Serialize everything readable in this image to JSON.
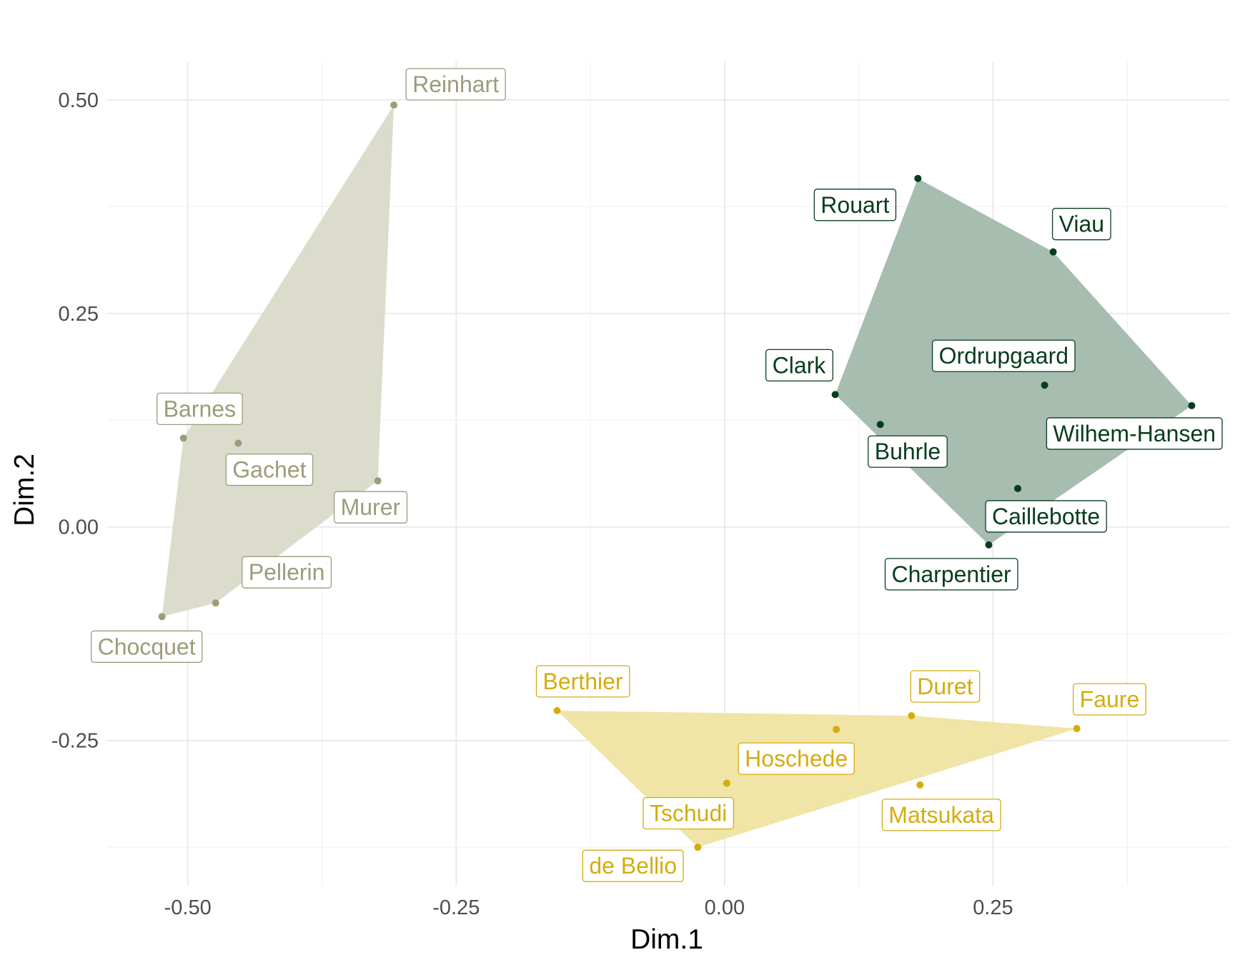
{
  "chart_data": {
    "type": "scatter",
    "title": "",
    "xlabel": "Dim.1",
    "ylabel": "Dim.2",
    "xlim": [
      -0.575,
      0.47
    ],
    "ylim": [
      -0.42,
      0.545
    ],
    "xticks": [
      -0.5,
      -0.25,
      0.0,
      0.25
    ],
    "xtick_labels": [
      "-0.50",
      "-0.25",
      "0.00",
      "0.25"
    ],
    "yticks": [
      -0.25,
      0.0,
      0.25,
      0.5
    ],
    "ytick_labels": [
      "-0.25",
      "0.00",
      "0.25",
      "0.50"
    ],
    "grid": true,
    "legend": "none",
    "series": [
      {
        "color": "#9c9c7a",
        "fill": "#dcdccc",
        "points": [
          {
            "label": "Reinhart",
            "x": -0.308,
            "y": 0.494
          },
          {
            "label": "Barnes",
            "x": -0.504,
            "y": 0.104
          },
          {
            "label": "Gachet",
            "x": -0.453,
            "y": 0.098
          },
          {
            "label": "Murer",
            "x": -0.323,
            "y": 0.054
          },
          {
            "label": "Pellerin",
            "x": -0.474,
            "y": -0.089
          },
          {
            "label": "Chocquet",
            "x": -0.524,
            "y": -0.105
          }
        ],
        "hull": [
          "Reinhart",
          "Murer",
          "Pellerin",
          "Chocquet",
          "Barnes"
        ]
      },
      {
        "color": "#073d1c",
        "fill": "#a7bdb0",
        "points": [
          {
            "label": "Rouart",
            "x": 0.18,
            "y": 0.408
          },
          {
            "label": "Viau",
            "x": 0.306,
            "y": 0.322
          },
          {
            "label": "Ordrupgaard",
            "x": 0.298,
            "y": 0.166
          },
          {
            "label": "Clark",
            "x": 0.103,
            "y": 0.155
          },
          {
            "label": "Wilhem-Hansen",
            "x": 0.435,
            "y": 0.142
          },
          {
            "label": "Buhrle",
            "x": 0.145,
            "y": 0.12
          },
          {
            "label": "Caillebotte",
            "x": 0.273,
            "y": 0.045
          },
          {
            "label": "Charpentier",
            "x": 0.246,
            "y": -0.021
          }
        ],
        "hull": [
          "Rouart",
          "Viau",
          "Wilhem-Hansen",
          "Charpentier",
          "Clark"
        ]
      },
      {
        "color": "#d4ac0d",
        "fill": "#f0e4a6",
        "points": [
          {
            "label": "Berthier",
            "x": -0.156,
            "y": -0.215
          },
          {
            "label": "Duret",
            "x": 0.174,
            "y": -0.221
          },
          {
            "label": "Faure",
            "x": 0.328,
            "y": -0.236
          },
          {
            "label": "Hoschede",
            "x": 0.104,
            "y": -0.237
          },
          {
            "label": "Tschudi",
            "x": 0.002,
            "y": -0.3
          },
          {
            "label": "Matsukata",
            "x": 0.182,
            "y": -0.302
          },
          {
            "label": "de Bellio",
            "x": -0.025,
            "y": -0.375
          }
        ],
        "hull": [
          "Berthier",
          "Duret",
          "Faure",
          "de Bellio"
        ]
      }
    ]
  }
}
